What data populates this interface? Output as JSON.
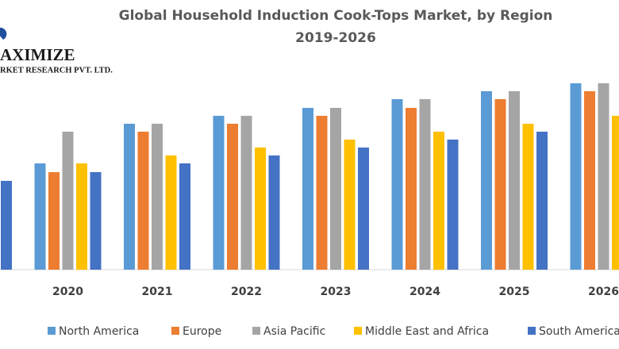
{
  "chart_data": {
    "type": "bar",
    "title": [
      "Global Household Induction Cook-Tops Market, by Region",
      "2019-2026"
    ],
    "logo": [
      "AXIMIZE",
      "RKET RESEARCH PVT. LTD."
    ],
    "categories": [
      null,
      "2020",
      "2021",
      "2022",
      "2023",
      "2024",
      "2025",
      "2026"
    ],
    "series": [
      {
        "name": "North America",
        "color": "#5b9bd5",
        "values": [
          null,
          134,
          184,
          194,
          204,
          215,
          225,
          235
        ]
      },
      {
        "name": "Europe",
        "color": "#ed7d31",
        "values": [
          null,
          123,
          174,
          184,
          194,
          204,
          215,
          225
        ]
      },
      {
        "name": "Asia Pacific",
        "color": "#a5a5a5",
        "values": [
          null,
          174,
          184,
          194,
          204,
          215,
          225,
          235
        ]
      },
      {
        "name": "Middle East and Africa",
        "color": "#ffc000",
        "values": [
          null,
          134,
          144,
          154,
          164,
          174,
          184,
          194
        ]
      },
      {
        "name": "South America",
        "color": "#4472c4",
        "values": [
          112,
          123,
          134,
          144,
          154,
          164,
          174,
          null
        ]
      }
    ]
  }
}
